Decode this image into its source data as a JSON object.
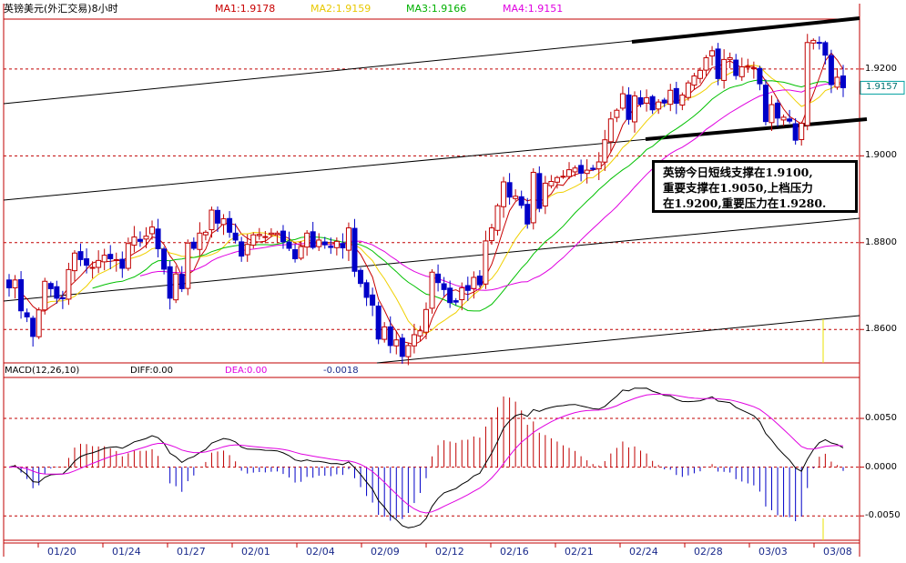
{
  "header": {
    "title": "英镑美元(外汇交易)8小时",
    "ma1": "MA1:1.9178",
    "ma2": "MA2:1.9159",
    "ma3": "MA3:1.9166",
    "ma4": "MA4:1.9151",
    "last_price": "1.9157"
  },
  "macd_header": {
    "name": "MACD(12,26,10)",
    "diff": "DIFF:0.00",
    "dea": "DEA:0.00",
    "value": "-0.0018"
  },
  "annotation": {
    "lines": [
      "英镑今日短线支撑在1.9100,",
      "重要支撑在1.9050,上档压力",
      "在1.9200,重要压力在1.9280."
    ]
  },
  "colors": {
    "up": "#c00000",
    "down": "#0000c8",
    "ma1": "#c80000",
    "ma2": "#f0d000",
    "ma3": "#00c000",
    "ma4": "#e000e0",
    "axis": "#c00000",
    "grid": "#c00000",
    "text_date": "#1a2a8c"
  },
  "chart_data": [
    {
      "type": "candlestick",
      "title": "英镑美元(外汇交易)8小时",
      "y_ticks": [
        1.86,
        1.88,
        1.9,
        1.92
      ],
      "y_tick_labels": [
        "1.8600",
        "1.8800",
        "1.9000",
        "1.9200"
      ],
      "ylim": [
        1.8523,
        1.9315
      ],
      "last_price": 1.9157,
      "x_tick_labels": [
        "01/20",
        "01/24",
        "01/27",
        "02/01",
        "02/04",
        "02/09",
        "02/12",
        "02/16",
        "02/21",
        "02/24",
        "02/28",
        "03/03",
        "03/08"
      ],
      "grid": "horizontal dashed",
      "annotation": "英镑今日短线支撑在1.9100,重要支撑在1.9050,上档压力在1.9200,重要压力在1.9280.",
      "ohlc_close": [
        1.8696,
        1.8714,
        1.8643,
        1.8629,
        1.8584,
        1.8645,
        1.8711,
        1.8694,
        1.8672,
        1.8671,
        1.8738,
        1.8776,
        1.8761,
        1.8748,
        1.8743,
        1.8759,
        1.8771,
        1.8763,
        1.8761,
        1.8741,
        1.8798,
        1.8813,
        1.8803,
        1.8815,
        1.8836,
        1.8786,
        1.8739,
        1.8672,
        1.8728,
        1.8694,
        1.8799,
        1.8787,
        1.8822,
        1.8824,
        1.8875,
        1.8845,
        1.8855,
        1.8824,
        1.8806,
        1.8769,
        1.8796,
        1.8818,
        1.8819,
        1.8814,
        1.8822,
        1.8822,
        1.8802,
        1.8787,
        1.8763,
        1.8791,
        1.8822,
        1.8789,
        1.8806,
        1.8795,
        1.8789,
        1.8803,
        1.8788,
        1.8834,
        1.8734,
        1.8706,
        1.8674,
        1.8656,
        1.8578,
        1.8606,
        1.8563,
        1.8576,
        1.8538,
        1.8563,
        1.8588,
        1.8597,
        1.8646,
        1.8732,
        1.8708,
        1.8692,
        1.8662,
        1.8663,
        1.8696,
        1.869,
        1.872,
        1.8703,
        1.8804,
        1.8834,
        1.8885,
        1.894,
        1.8905,
        1.8907,
        1.8886,
        1.8843,
        1.8962,
        1.8879,
        1.8937,
        1.8941,
        1.895,
        1.8953,
        1.8968,
        1.8972,
        1.896,
        1.8967,
        1.8969,
        1.8986,
        1.9037,
        1.9085,
        1.9105,
        1.9143,
        1.9084,
        1.9138,
        1.9119,
        1.9134,
        1.9106,
        1.9124,
        1.9122,
        1.9151,
        1.9121,
        1.914,
        1.9168,
        1.9184,
        1.9197,
        1.9226,
        1.9242,
        1.9178,
        1.9222,
        1.9226,
        1.9185,
        1.9205,
        1.9206,
        1.9203,
        1.9166,
        1.9079,
        1.9118,
        1.9087,
        1.9089,
        1.908,
        1.9036,
        1.9075,
        1.9261,
        1.9266,
        1.9261,
        1.9232,
        1.9164,
        1.9181,
        1.9157
      ],
      "ma": [
        {
          "name": "MA1",
          "last": 1.9178
        },
        {
          "name": "MA2",
          "last": 1.9159
        },
        {
          "name": "MA3",
          "last": 1.9166
        },
        {
          "name": "MA4",
          "last": 1.9151
        }
      ]
    },
    {
      "type": "bar",
      "title": "MACD(12,26,10)",
      "y_ticks": [
        -0.005,
        0,
        0.005
      ],
      "y_tick_labels": [
        "-0.0050",
        "0.0000",
        "0.0050"
      ],
      "ylim": [
        -0.0075,
        0.0092
      ],
      "series": [
        {
          "name": "DIFF",
          "summary_label": "DIFF:0.00"
        },
        {
          "name": "DEA",
          "summary_label": "DEA:0.00"
        }
      ],
      "macd_value": -0.0018
    }
  ]
}
